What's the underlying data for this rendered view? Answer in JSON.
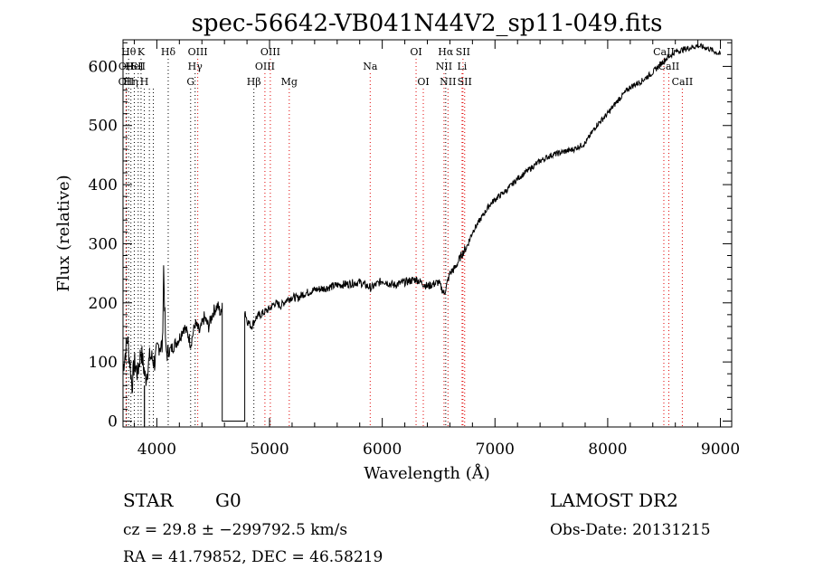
{
  "chart_data": {
    "type": "line",
    "title": "spec-56642-VB041N44V2_sp11-049.fits",
    "xlabel": "Wavelength (Å)",
    "ylabel": "Flux (relative)",
    "xlim": [
      3700,
      9100
    ],
    "ylim": [
      -10,
      645
    ],
    "xticks": [
      4000,
      5000,
      6000,
      7000,
      8000,
      9000
    ],
    "yticks": [
      0,
      100,
      200,
      300,
      400,
      500,
      600
    ],
    "grid": false,
    "series": [
      {
        "x": [
          3700,
          3740,
          3780,
          3800,
          3830,
          3860,
          3900,
          3940,
          3980,
          4020,
          4050,
          4060,
          4080,
          4120,
          4160,
          4200,
          4240,
          4280,
          4300,
          4340,
          4380,
          4420,
          4460,
          4500,
          4540,
          4570,
          4580,
          4580,
          4780,
          4780,
          4800,
          4840,
          4880,
          4920,
          4960,
          5000,
          5050,
          5100,
          5150,
          5200,
          5250,
          5300,
          5400,
          5500,
          5600,
          5700,
          5800,
          5900,
          6000,
          6100,
          6200,
          6300,
          6400,
          6500,
          6550,
          6600,
          6650,
          6700,
          6750,
          6800,
          6850,
          6900,
          6950,
          7000,
          7100,
          7200,
          7300,
          7400,
          7500,
          7600,
          7700,
          7800,
          7900,
          8000,
          8100,
          8200,
          8300,
          8400,
          8500,
          8600,
          8700,
          8800,
          8900,
          9000
        ],
        "values": [
          90,
          140,
          60,
          100,
          80,
          120,
          70,
          110,
          100,
          130,
          125,
          260,
          115,
          120,
          130,
          140,
          160,
          145,
          130,
          165,
          150,
          175,
          160,
          185,
          195,
          180,
          200,
          0,
          0,
          190,
          170,
          160,
          175,
          180,
          185,
          190,
          200,
          195,
          205,
          210,
          208,
          215,
          222,
          225,
          230,
          232,
          235,
          225,
          238,
          230,
          235,
          240,
          228,
          235,
          215,
          250,
          260,
          280,
          295,
          320,
          335,
          350,
          365,
          375,
          390,
          410,
          425,
          440,
          450,
          455,
          460,
          470,
          500,
          520,
          545,
          565,
          575,
          590,
          610,
          625,
          630,
          635,
          630,
          620
        ]
      }
    ],
    "lines": [
      {
        "x": 3750,
        "row": 0,
        "label": "Hθ",
        "color": "#000000"
      },
      {
        "x": 3730,
        "row": 1,
        "label": "OII",
        "color": "#000000"
      },
      {
        "x": 3728,
        "row": 2,
        "label": "OII",
        "color": "#e00000"
      },
      {
        "x": 3770,
        "row": 2,
        "label": "Hη",
        "color": "#000000"
      },
      {
        "x": 3800,
        "row": 1,
        "label": "HeI",
        "color": "#000000"
      },
      {
        "x": 3835,
        "row": 1,
        "label": "SII",
        "color": "#000000"
      },
      {
        "x": 3860,
        "row": 0,
        "label": "K",
        "color": "#000000"
      },
      {
        "x": 3889,
        "row": 2,
        "label": "H",
        "color": "#000000"
      },
      {
        "x": 3934,
        "row": 2,
        "label": "",
        "color": "#000000"
      },
      {
        "x": 3969,
        "row": 2,
        "label": "",
        "color": "#000000"
      },
      {
        "x": 4101,
        "row": 0,
        "label": "Hδ",
        "color": "#000000"
      },
      {
        "x": 4300,
        "row": 2,
        "label": "G",
        "color": "#000000"
      },
      {
        "x": 4340,
        "row": 1,
        "label": "Hγ",
        "color": "#000000"
      },
      {
        "x": 4363,
        "row": 0,
        "label": "OIII",
        "color": "#e00000"
      },
      {
        "x": 4861,
        "row": 2,
        "label": "Hβ",
        "color": "#000000"
      },
      {
        "x": 4959,
        "row": 1,
        "label": "OIII",
        "color": "#e00000"
      },
      {
        "x": 5007,
        "row": 0,
        "label": "OIII",
        "color": "#e00000"
      },
      {
        "x": 5175,
        "row": 2,
        "label": "Mg",
        "color": "#e00000"
      },
      {
        "x": 5893,
        "row": 1,
        "label": "Na",
        "color": "#e00000"
      },
      {
        "x": 6300,
        "row": 0,
        "label": "OI",
        "color": "#e00000"
      },
      {
        "x": 6364,
        "row": 2,
        "label": "OI",
        "color": "#e00000"
      },
      {
        "x": 6548,
        "row": 1,
        "label": "NII",
        "color": "#e00000"
      },
      {
        "x": 6563,
        "row": 0,
        "label": "Hα",
        "color": "#000000"
      },
      {
        "x": 6583,
        "row": 2,
        "label": "NII",
        "color": "#e00000"
      },
      {
        "x": 6708,
        "row": 1,
        "label": "Li",
        "color": "#e00000"
      },
      {
        "x": 6716,
        "row": 0,
        "label": "SII",
        "color": "#e00000"
      },
      {
        "x": 6731,
        "row": 2,
        "label": "SII",
        "color": "#e00000"
      },
      {
        "x": 8498,
        "row": 0,
        "label": "CaII",
        "color": "#e00000"
      },
      {
        "x": 8542,
        "row": 1,
        "label": "CaII",
        "color": "#e00000"
      },
      {
        "x": 8662,
        "row": 2,
        "label": "CaII",
        "color": "#e00000"
      }
    ]
  },
  "info": {
    "class": "STAR",
    "subclass": "G0",
    "survey": "LAMOST DR2",
    "cz": "cz = 29.8 ± −299792.5 km/s",
    "obs_date": "Obs-Date: 20131215",
    "coords": "RA =  41.79852, DEC =  46.58219"
  }
}
